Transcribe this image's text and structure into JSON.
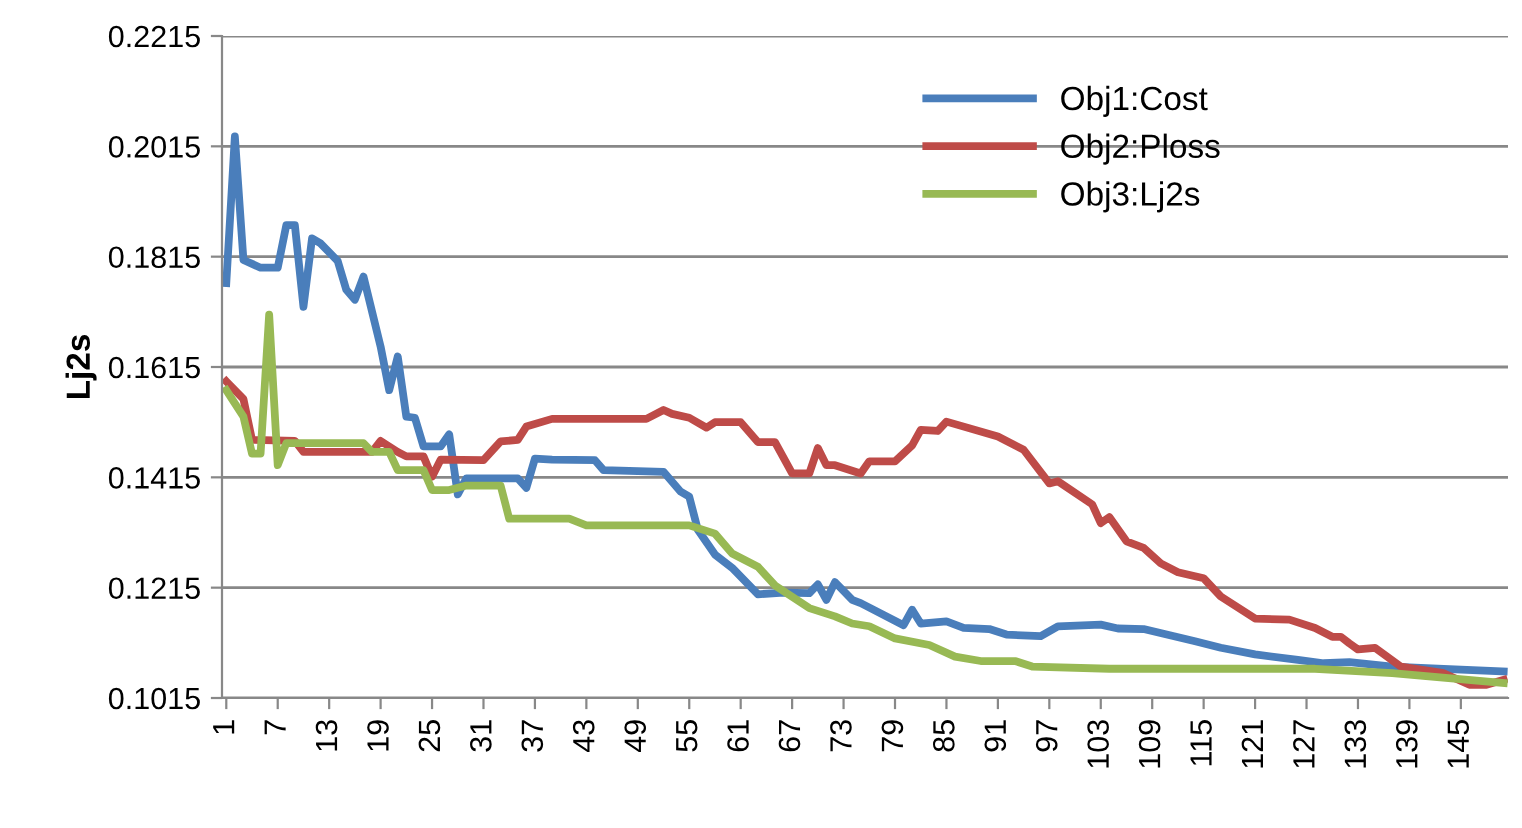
{
  "chart_data": {
    "type": "line",
    "ylabel": "Lj2s",
    "xlim": [
      0.5,
      150.5
    ],
    "xticks": [
      1,
      7,
      13,
      19,
      25,
      31,
      37,
      43,
      49,
      55,
      61,
      67,
      73,
      79,
      85,
      91,
      97,
      103,
      109,
      115,
      121,
      127,
      133,
      139,
      145
    ],
    "ylim": [
      0.1015,
      0.2215
    ],
    "yticks": [
      0.1015,
      0.1215,
      0.1415,
      0.1615,
      0.1815,
      0.2015,
      0.2215
    ],
    "grid": "y",
    "legend": "top right",
    "marker": "none",
    "line_style": "solid",
    "series": [
      {
        "name": "Obj1:Cost",
        "color": "#4a7ebb",
        "x": [
          1,
          2,
          3,
          5,
          7,
          8,
          9,
          10,
          11,
          12,
          14,
          15,
          16,
          17,
          19,
          20,
          21,
          22,
          23,
          24,
          26,
          27,
          28,
          29,
          35,
          36,
          37,
          39,
          44,
          45,
          52,
          54,
          55,
          56,
          58,
          60,
          63,
          66,
          69,
          70,
          71,
          72,
          74,
          75,
          80,
          81,
          82,
          85,
          87,
          90,
          92,
          96,
          98,
          103,
          105,
          108,
          114,
          117,
          121,
          126,
          129,
          132,
          137,
          143,
          150
        ],
        "values": [
          0.1767,
          0.2033,
          0.1809,
          0.1795,
          0.1795,
          0.1872,
          0.1872,
          0.1724,
          0.1848,
          0.1839,
          0.1807,
          0.1755,
          0.1737,
          0.1779,
          0.1652,
          0.1573,
          0.1634,
          0.1525,
          0.1523,
          0.1471,
          0.1471,
          0.1493,
          0.1384,
          0.1413,
          0.1413,
          0.1396,
          0.1449,
          0.1447,
          0.1446,
          0.1428,
          0.1425,
          0.1389,
          0.138,
          0.132,
          0.1275,
          0.1251,
          0.1203,
          0.1206,
          0.1205,
          0.1221,
          0.1193,
          0.1225,
          0.1193,
          0.1187,
          0.1147,
          0.1175,
          0.115,
          0.1154,
          0.1142,
          0.114,
          0.113,
          0.1127,
          0.1145,
          0.1148,
          0.1141,
          0.114,
          0.1118,
          0.1106,
          0.1094,
          0.1084,
          0.1078,
          0.108,
          0.1072,
          0.1068,
          0.1063
        ]
      },
      {
        "name": "Obj2:Ploss",
        "color": "#be4b48",
        "x": [
          1,
          3,
          4,
          9,
          10,
          18,
          19,
          21,
          22,
          24,
          25,
          26,
          31,
          33,
          35,
          36,
          39,
          50,
          52,
          53,
          55,
          57,
          58,
          61,
          63,
          65,
          67,
          69,
          70,
          71,
          72,
          74,
          75,
          76,
          79,
          81,
          82,
          84,
          85,
          91,
          94,
          97,
          98,
          102,
          103,
          104,
          106,
          108,
          110,
          112,
          115,
          117,
          120,
          121,
          125,
          128,
          130,
          131,
          132,
          133,
          135,
          138,
          143,
          146,
          148,
          150
        ],
        "values": [
          0.1589,
          0.1557,
          0.1483,
          0.1481,
          0.1461,
          0.1461,
          0.1481,
          0.1461,
          0.1453,
          0.1453,
          0.1416,
          0.1447,
          0.1446,
          0.148,
          0.1483,
          0.1507,
          0.1521,
          0.1521,
          0.1537,
          0.153,
          0.1523,
          0.1505,
          0.1515,
          0.1515,
          0.1479,
          0.1479,
          0.1422,
          0.1422,
          0.1468,
          0.1437,
          0.1437,
          0.1427,
          0.1422,
          0.1444,
          0.1444,
          0.1473,
          0.1501,
          0.1499,
          0.1516,
          0.1489,
          0.1465,
          0.1404,
          0.1408,
          0.1366,
          0.1332,
          0.1343,
          0.1299,
          0.1287,
          0.1259,
          0.1243,
          0.1232,
          0.1199,
          0.1169,
          0.1159,
          0.1157,
          0.1142,
          0.1126,
          0.1126,
          0.1114,
          0.1103,
          0.1106,
          0.1072,
          0.106,
          0.1039,
          0.1039,
          0.1048
        ]
      },
      {
        "name": "Obj3:Lj2s",
        "color": "#98b954",
        "x": [
          1,
          3,
          4,
          5,
          6,
          7,
          8,
          17,
          18,
          20,
          21,
          24,
          25,
          27,
          29,
          33,
          34,
          41,
          43,
          55,
          58,
          60,
          63,
          65,
          69,
          72,
          74,
          76,
          79,
          83,
          86,
          89,
          93,
          95,
          104,
          128,
          137,
          150
        ],
        "values": [
          0.1573,
          0.1525,
          0.1458,
          0.1458,
          0.171,
          0.1437,
          0.1477,
          0.1477,
          0.1461,
          0.1461,
          0.1428,
          0.1428,
          0.1392,
          0.1392,
          0.14,
          0.14,
          0.134,
          0.134,
          0.1328,
          0.1328,
          0.1313,
          0.1277,
          0.1253,
          0.1219,
          0.1178,
          0.1163,
          0.115,
          0.1145,
          0.1123,
          0.1111,
          0.109,
          0.1082,
          0.1082,
          0.1072,
          0.1068,
          0.1068,
          0.106,
          0.1042
        ]
      }
    ]
  }
}
